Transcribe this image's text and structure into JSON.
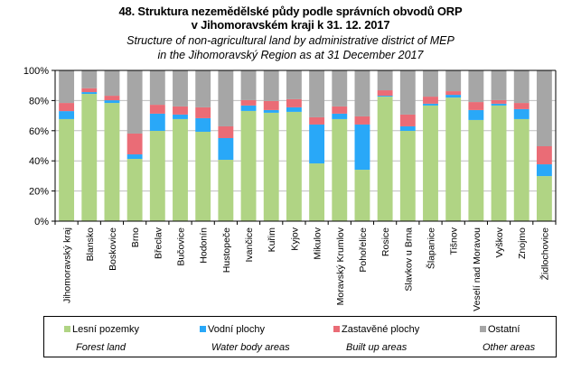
{
  "title": {
    "line1": "48. Struktura nezemědělské půdy podle správních obvodů ORP",
    "line2": "v Jihomoravském kraji k 31. 12. 2017",
    "line3": "Structure of non-agricultural  land by administrative  district of MEP",
    "line4": "in the Jihomoravský  Region as at 31 December 2017"
  },
  "chart_data": {
    "type": "bar",
    "stacked": "percent",
    "title": "48. Struktura nezemědělské půdy podle správních obvodů ORP v Jihomoravském kraji k 31. 12. 2017",
    "subtitle": "Structure of non-agricultural land by administrative district of MEP in the Jihomoravský Region as at 31 December 2017",
    "xlabel": "",
    "ylabel": "",
    "ylim": [
      0,
      100
    ],
    "yticks": [
      "0%",
      "20%",
      "40%",
      "60%",
      "80%",
      "100%"
    ],
    "grid": "horizontal",
    "legend_position": "bottom",
    "categories": [
      "Jihomoravský kraj",
      "Blansko",
      "Boskovice",
      "Brno",
      "Břeclav",
      "Bučovice",
      "Hodonín",
      "Hustopeče",
      "Ivančice",
      "Kuřim",
      "Kyjov",
      "Mikulov",
      "Moravský Krumlov",
      "Pohořelice",
      "Rosice",
      "Slavkov u Brna",
      "Šlapanice",
      "Tišnov",
      "Veselí nad Moravou",
      "Vyškov",
      "Znojmo",
      "Židlochovice"
    ],
    "series": [
      {
        "name": "Lesní pozemky",
        "name_en": "Forest land",
        "color": "#b0d484",
        "values": [
          67.7,
          84.4,
          78.4,
          41.3,
          59.9,
          67.7,
          59.3,
          40.7,
          73.1,
          71.9,
          72.5,
          38.3,
          67.7,
          34.1,
          82.6,
          59.9,
          76.7,
          82.0,
          67.1,
          76.7,
          67.7,
          29.9
        ]
      },
      {
        "name": "Vodní plochy",
        "name_en": "Water body areas",
        "color": "#29a8f8",
        "values": [
          5.3,
          1.2,
          1.8,
          3.0,
          11.4,
          3.0,
          9.0,
          14.4,
          3.6,
          1.8,
          3.0,
          25.8,
          3.6,
          30.0,
          0.6,
          3.0,
          1.2,
          1.8,
          6.6,
          1.2,
          6.6,
          7.8
        ]
      },
      {
        "name": "Zastavěné plochy",
        "name_en": "Built up areas",
        "color": "#ea6c76",
        "values": [
          5.4,
          2.6,
          3.0,
          13.8,
          5.9,
          5.4,
          7.2,
          7.8,
          3.6,
          6.0,
          5.4,
          4.8,
          4.8,
          5.4,
          3.6,
          7.8,
          4.7,
          2.4,
          5.3,
          2.4,
          4.1,
          12.0
        ]
      },
      {
        "name": "Ostatní",
        "name_en": "Other areas",
        "color": "#a6a6a6",
        "values": [
          21.6,
          11.8,
          16.8,
          41.9,
          22.8,
          23.9,
          24.5,
          37.1,
          19.7,
          20.3,
          19.1,
          31.1,
          23.9,
          30.5,
          13.2,
          29.3,
          17.4,
          13.8,
          21.0,
          19.7,
          21.6,
          50.3
        ]
      }
    ]
  },
  "legend": [
    {
      "label": "Lesní pozemky",
      "label_en": "Forest land",
      "color": "#b0d484"
    },
    {
      "label": "Vodní plochy",
      "label_en": "Water body areas",
      "color": "#29a8f8"
    },
    {
      "label": "Zastavěné plochy",
      "label_en": "Built up areas",
      "color": "#ea6c76"
    },
    {
      "label": "Ostatní",
      "label_en": "Other areas",
      "color": "#a6a6a6"
    }
  ]
}
